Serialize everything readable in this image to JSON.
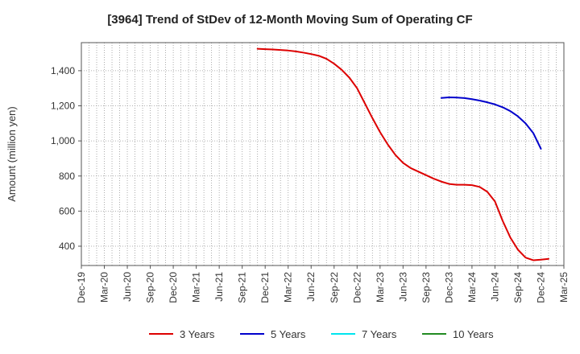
{
  "chart_data": {
    "type": "line",
    "title": "[3964]  Trend of StDev of 12-Month Moving Sum of Operating CF",
    "xlabel": "",
    "ylabel": "Amount (million yen)",
    "ylim": [
      290,
      1560
    ],
    "yticks": [
      400,
      600,
      800,
      1000,
      1200,
      1400
    ],
    "ytick_labels": [
      "400",
      "600",
      "800",
      "1,000",
      "1,200",
      "1,400"
    ],
    "x_tick_labels": [
      "Dec-19",
      "Mar-20",
      "Jun-20",
      "Sep-20",
      "Dec-20",
      "Mar-21",
      "Jun-21",
      "Sep-21",
      "Dec-21",
      "Mar-22",
      "Jun-22",
      "Sep-22",
      "Dec-22",
      "Mar-23",
      "Jun-23",
      "Sep-23",
      "Dec-23",
      "Mar-24",
      "Jun-24",
      "Sep-24",
      "Dec-24",
      "Mar-25"
    ],
    "x_start": "2019-12",
    "grid": true,
    "legend_position": "bottom",
    "series": [
      {
        "name": "3 Years",
        "color": "#dd0000",
        "points": [
          [
            "2021-11",
            1525
          ],
          [
            "2021-12",
            1523
          ],
          [
            "2022-01",
            1521
          ],
          [
            "2022-02",
            1518
          ],
          [
            "2022-03",
            1515
          ],
          [
            "2022-04",
            1510
          ],
          [
            "2022-05",
            1503
          ],
          [
            "2022-06",
            1495
          ],
          [
            "2022-07",
            1485
          ],
          [
            "2022-08",
            1468
          ],
          [
            "2022-09",
            1440
          ],
          [
            "2022-10",
            1405
          ],
          [
            "2022-11",
            1360
          ],
          [
            "2022-12",
            1300
          ],
          [
            "2023-01",
            1215
          ],
          [
            "2023-02",
            1130
          ],
          [
            "2023-03",
            1050
          ],
          [
            "2023-04",
            980
          ],
          [
            "2023-05",
            920
          ],
          [
            "2023-06",
            875
          ],
          [
            "2023-07",
            845
          ],
          [
            "2023-08",
            825
          ],
          [
            "2023-09",
            805
          ],
          [
            "2023-10",
            785
          ],
          [
            "2023-11",
            768
          ],
          [
            "2023-12",
            755
          ],
          [
            "2024-01",
            750
          ],
          [
            "2024-02",
            750
          ],
          [
            "2024-03",
            748
          ],
          [
            "2024-04",
            738
          ],
          [
            "2024-05",
            710
          ],
          [
            "2024-06",
            655
          ],
          [
            "2024-07",
            545
          ],
          [
            "2024-08",
            450
          ],
          [
            "2024-09",
            380
          ],
          [
            "2024-10",
            335
          ],
          [
            "2024-11",
            320
          ],
          [
            "2024-12",
            323
          ],
          [
            "2025-01",
            328
          ]
        ]
      },
      {
        "name": "5 Years",
        "color": "#0000cc",
        "points": [
          [
            "2023-11",
            1245
          ],
          [
            "2023-12",
            1248
          ],
          [
            "2024-01",
            1247
          ],
          [
            "2024-02",
            1244
          ],
          [
            "2024-03",
            1238
          ],
          [
            "2024-04",
            1230
          ],
          [
            "2024-05",
            1220
          ],
          [
            "2024-06",
            1208
          ],
          [
            "2024-07",
            1192
          ],
          [
            "2024-08",
            1170
          ],
          [
            "2024-09",
            1140
          ],
          [
            "2024-10",
            1100
          ],
          [
            "2024-11",
            1045
          ],
          [
            "2024-12",
            955
          ]
        ]
      },
      {
        "name": "7 Years",
        "color": "#00e5ee",
        "points": []
      },
      {
        "name": "10 Years",
        "color": "#228b22",
        "points": []
      }
    ]
  }
}
